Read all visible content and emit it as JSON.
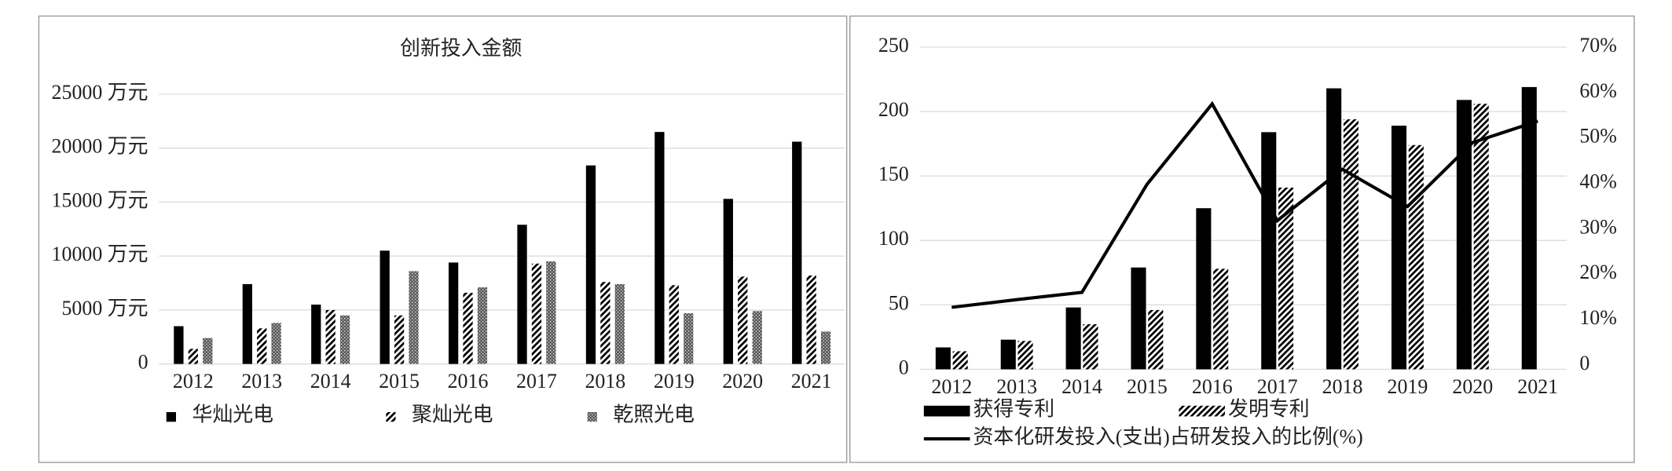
{
  "chart_data": [
    {
      "type": "bar",
      "title": "创新投入金额",
      "categories": [
        "2012",
        "2013",
        "2014",
        "2015",
        "2016",
        "2017",
        "2018",
        "2019",
        "2020",
        "2021"
      ],
      "series": [
        {
          "name": "华灿光电",
          "color": "#000000",
          "pattern": "solid",
          "values": [
            3500,
            7400,
            5500,
            10500,
            9400,
            12900,
            18400,
            21500,
            15300,
            20600
          ]
        },
        {
          "name": "聚灿光电",
          "color": "#000000",
          "pattern": "hatch",
          "values": [
            1400,
            3300,
            5000,
            4500,
            6600,
            9300,
            7600,
            7300,
            8100,
            8200
          ]
        },
        {
          "name": "乾照光电",
          "color": "#000000",
          "pattern": "crosshatch",
          "values": [
            2400,
            3800,
            4500,
            8600,
            7100,
            9500,
            7400,
            4700,
            4900,
            3000
          ]
        }
      ],
      "ylim": [
        0,
        25000
      ],
      "yticks": [
        0,
        {
          "value": 5000,
          "label": "5000 万元"
        },
        {
          "value": 10000,
          "label": "10000 万元"
        },
        {
          "value": 15000,
          "label": "15000 万元"
        },
        {
          "value": 20000,
          "label": "20000 万元"
        },
        {
          "value": 25000,
          "label": "25000 万元"
        }
      ],
      "grid": true,
      "legend": "bottom"
    },
    {
      "type": "bar",
      "categories": [
        "2012",
        "2013",
        "2014",
        "2015",
        "2016",
        "2017",
        "2018",
        "2019",
        "2020",
        "2021"
      ],
      "series": [
        {
          "name": "获得专利",
          "color": "#000000",
          "pattern": "solid",
          "values": [
            17,
            23,
            48,
            79,
            125,
            184,
            218,
            189,
            209,
            219
          ]
        },
        {
          "name": "发明专利",
          "color": "#000000",
          "pattern": "hatch",
          "values": [
            14,
            22,
            35,
            46,
            78,
            141,
            194,
            174,
            206,
            null
          ]
        },
        {
          "name": "资本化研发投入(支出)占研发投入的比例(%)",
          "type": "line",
          "axis": "y2",
          "color": "#000000",
          "values": [
            12.7,
            14.4,
            16,
            39.8,
            57.5,
            31.8,
            43.1,
            34.9,
            49,
            53.7
          ]
        }
      ],
      "ylim": [
        0,
        250
      ],
      "yticks": [
        0,
        50,
        100,
        150,
        200,
        250
      ],
      "y2lim": [
        0,
        70
      ],
      "y2ticks": [
        0,
        {
          "value": 10,
          "label": "10%"
        },
        {
          "value": 20,
          "label": "20%"
        },
        {
          "value": 30,
          "label": "30%"
        },
        {
          "value": 40,
          "label": "40%"
        },
        {
          "value": 50,
          "label": "50%"
        },
        {
          "value": 60,
          "label": "60%"
        },
        {
          "value": 70,
          "label": "70%"
        }
      ],
      "grid": true,
      "legend": "bottom"
    }
  ]
}
